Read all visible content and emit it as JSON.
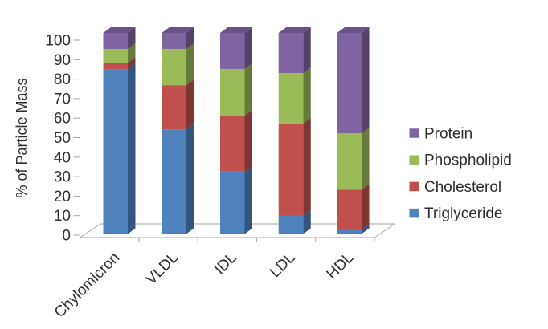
{
  "chart_data": {
    "type": "bar",
    "stacked": true,
    "effect": "3d-column",
    "title": "",
    "xlabel": "",
    "ylabel": "% of Particle Mass",
    "ylim": [
      0,
      100
    ],
    "ytick_step": 10,
    "yticks": [
      100,
      90,
      80,
      70,
      60,
      50,
      40,
      30,
      20,
      10,
      0
    ],
    "grid": false,
    "categories": [
      "Chylomicron",
      "VLDL",
      "IDL",
      "LDL",
      "HDL"
    ],
    "series": [
      {
        "name": "Triglyceride",
        "color": "#4F81BD",
        "values": [
          82,
          52,
          31,
          9,
          2
        ]
      },
      {
        "name": "Cholesterol",
        "color": "#C0504D",
        "values": [
          3,
          22,
          28,
          46,
          20
        ]
      },
      {
        "name": "Phospholipid",
        "color": "#9BBB59",
        "values": [
          7,
          18,
          23,
          25,
          28
        ]
      },
      {
        "name": "Protein",
        "color": "#8064A2",
        "values": [
          8,
          8,
          18,
          20,
          50
        ]
      }
    ],
    "legend": {
      "position": "right",
      "items": [
        "Protein",
        "Phospholipid",
        "Cholesterol",
        "Triglyceride"
      ]
    },
    "colors": {
      "axis_line": "#A6A6A6",
      "text": "#2E2E2E"
    }
  }
}
